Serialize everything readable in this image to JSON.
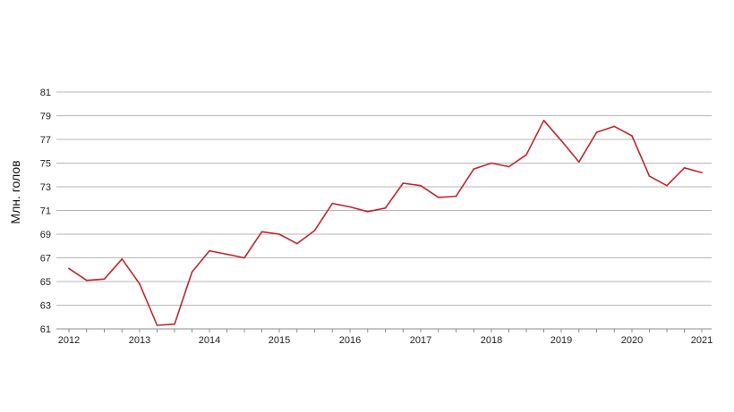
{
  "chart_data": {
    "type": "line",
    "title": "",
    "xlabel": "",
    "ylabel": "Млн. голов",
    "ylim": [
      61,
      81
    ],
    "yticks": [
      61,
      63,
      65,
      67,
      69,
      71,
      73,
      75,
      77,
      79,
      81
    ],
    "xlim": [
      2012,
      2021
    ],
    "xticks": [
      "2012",
      "2013",
      "2014",
      "2015",
      "2016",
      "2017",
      "2018",
      "2019",
      "2020",
      "2021"
    ],
    "grid": true,
    "legend": "none",
    "series_color": "#c0262d",
    "x": [
      2012.0,
      2012.25,
      2012.5,
      2012.75,
      2013.0,
      2013.25,
      2013.5,
      2013.75,
      2014.0,
      2014.25,
      2014.5,
      2014.75,
      2015.0,
      2015.25,
      2015.5,
      2015.75,
      2016.0,
      2016.25,
      2016.5,
      2016.75,
      2017.0,
      2017.25,
      2017.5,
      2017.75,
      2018.0,
      2018.25,
      2018.5,
      2018.75,
      2019.0,
      2019.25,
      2019.5,
      2019.75,
      2020.0,
      2020.25,
      2020.5,
      2020.75,
      2021.0
    ],
    "series": [
      {
        "values": [
          66.1,
          65.1,
          65.2,
          66.9,
          64.8,
          61.3,
          61.4,
          65.8,
          67.6,
          67.3,
          67.0,
          69.2,
          69.0,
          68.2,
          69.3,
          71.6,
          71.3,
          70.9,
          71.2,
          73.3,
          73.1,
          72.1,
          72.2,
          74.5,
          75.0,
          74.7,
          75.7,
          78.6,
          76.9,
          75.1,
          77.6,
          78.1,
          77.3,
          73.9,
          73.1,
          74.6,
          74.2
        ]
      }
    ]
  }
}
